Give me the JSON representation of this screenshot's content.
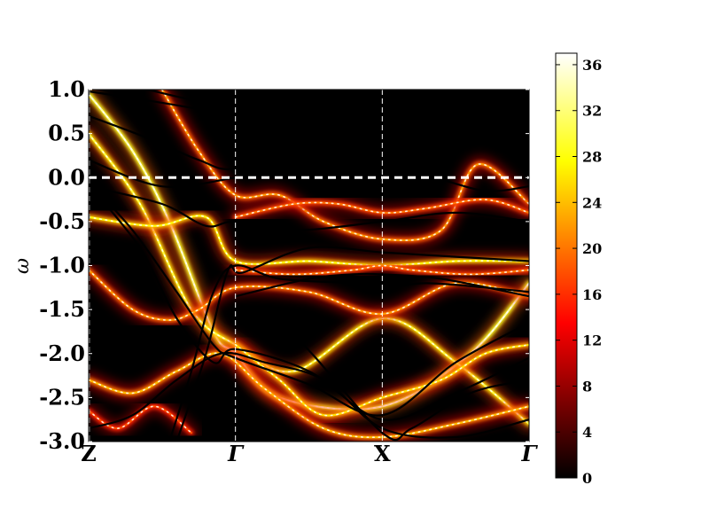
{
  "chart_data": {
    "type": "heatmap",
    "title": "",
    "xlabel": "",
    "ylabel": "ω",
    "ylim": [
      -3.0,
      1.0
    ],
    "x_ticks": [
      {
        "label": "Z",
        "pos": 0.0,
        "italic": false
      },
      {
        "label": "Γ",
        "pos": 1.0,
        "italic": true
      },
      {
        "label": "X",
        "pos": 2.0,
        "italic": false
      },
      {
        "label": "Γ",
        "pos": 3.0,
        "italic": true
      }
    ],
    "y_ticks": [
      "-3.0",
      "-2.5",
      "-2.0",
      "-1.5",
      "-1.0",
      "-0.5",
      "0.0",
      "0.5",
      "1.0"
    ],
    "y_tick_values": [
      -3.0,
      -2.5,
      -2.0,
      -1.5,
      -1.0,
      -0.5,
      0.0,
      0.5,
      1.0
    ],
    "fermi_level": 0.0,
    "colorbar": {
      "range": [
        0,
        37
      ],
      "ticks": [
        0,
        4,
        8,
        12,
        16,
        20,
        24,
        28,
        32,
        36
      ],
      "tick_labels": [
        "0",
        "4",
        "8",
        "12",
        "16",
        "20",
        "24",
        "28",
        "32",
        "36"
      ],
      "colormap": "hot"
    },
    "spectral_bands": [
      {
        "points": [
          [
            0.0,
            0.95
          ],
          [
            0.3,
            0.3
          ],
          [
            0.55,
            -0.5
          ],
          [
            0.85,
            -1.75
          ],
          [
            1.0,
            -2.0
          ],
          [
            1.3,
            -2.5
          ],
          [
            2.0,
            -2.6
          ],
          [
            2.6,
            -2.0
          ],
          [
            3.0,
            -1.2
          ]
        ],
        "intensity": 34
      },
      {
        "points": [
          [
            0.0,
            0.5
          ],
          [
            0.35,
            -0.3
          ],
          [
            0.7,
            -1.5
          ],
          [
            1.0,
            -1.9
          ],
          [
            1.4,
            -2.2
          ],
          [
            2.0,
            -1.6
          ],
          [
            2.5,
            -2.1
          ],
          [
            3.0,
            -2.8
          ]
        ],
        "intensity": 30
      },
      {
        "points": [
          [
            0.5,
            1.0
          ],
          [
            0.75,
            0.3
          ],
          [
            1.0,
            -0.2
          ],
          [
            1.3,
            -0.2
          ],
          [
            1.6,
            -0.5
          ],
          [
            2.0,
            -0.7
          ],
          [
            2.4,
            -0.6
          ],
          [
            2.65,
            0.15
          ],
          [
            3.0,
            -0.3
          ]
        ],
        "intensity": 22
      },
      {
        "points": [
          [
            0.0,
            -0.45
          ],
          [
            0.45,
            -0.55
          ],
          [
            0.8,
            -0.45
          ],
          [
            1.0,
            -0.95
          ],
          [
            1.5,
            -0.95
          ],
          [
            2.0,
            -1.0
          ],
          [
            2.5,
            -0.95
          ],
          [
            3.0,
            -0.95
          ]
        ],
        "intensity": 28
      },
      {
        "points": [
          [
            1.0,
            -0.45
          ],
          [
            1.4,
            -0.3
          ],
          [
            1.7,
            -0.3
          ],
          [
            2.0,
            -0.4
          ],
          [
            2.3,
            -0.35
          ],
          [
            2.7,
            -0.25
          ],
          [
            3.0,
            -0.4
          ]
        ],
        "intensity": 20
      },
      {
        "points": [
          [
            0.0,
            -2.3
          ],
          [
            0.3,
            -2.45
          ],
          [
            0.6,
            -2.2
          ],
          [
            0.9,
            -2.0
          ],
          [
            1.2,
            -2.4
          ],
          [
            1.6,
            -2.85
          ],
          [
            2.0,
            -2.95
          ],
          [
            2.5,
            -2.8
          ],
          [
            3.0,
            -2.6
          ]
        ],
        "intensity": 24
      },
      {
        "points": [
          [
            1.0,
            -1.9
          ],
          [
            1.3,
            -2.3
          ],
          [
            1.6,
            -2.7
          ],
          [
            2.0,
            -2.5
          ],
          [
            2.4,
            -2.3
          ],
          [
            2.7,
            -2.0
          ],
          [
            3.0,
            -1.9
          ]
        ],
        "intensity": 26
      },
      {
        "points": [
          [
            0.0,
            -1.05
          ],
          [
            0.3,
            -1.5
          ],
          [
            0.55,
            -1.62
          ],
          [
            0.75,
            -1.5
          ],
          [
            1.0,
            -1.25
          ],
          [
            1.5,
            -1.3
          ],
          [
            2.0,
            -1.55
          ],
          [
            2.5,
            -1.2
          ],
          [
            3.0,
            -1.35
          ]
        ],
        "intensity": 22
      },
      {
        "points": [
          [
            0.0,
            -2.65
          ],
          [
            0.2,
            -2.85
          ],
          [
            0.45,
            -2.6
          ],
          [
            0.7,
            -2.9
          ]
        ],
        "intensity": 18
      },
      {
        "points": [
          [
            1.0,
            -1.05
          ],
          [
            1.4,
            -1.1
          ],
          [
            1.8,
            -1.05
          ],
          [
            2.0,
            -1.0
          ],
          [
            2.2,
            -1.05
          ],
          [
            2.6,
            -1.1
          ],
          [
            3.0,
            -1.05
          ]
        ],
        "intensity": 20
      }
    ],
    "black_lines": [
      {
        "points": [
          [
            0.0,
            0.98
          ],
          [
            0.5,
            0.85
          ],
          [
            1.0,
            0.72
          ],
          [
            1.5,
            0.7
          ],
          [
            2.0,
            0.6
          ],
          [
            2.5,
            0.65
          ],
          [
            3.0,
            0.7
          ]
        ]
      },
      {
        "points": [
          [
            0.0,
            0.7
          ],
          [
            0.4,
            0.45
          ],
          [
            0.75,
            0.2
          ],
          [
            1.0,
            0.1
          ],
          [
            1.5,
            0.35
          ],
          [
            2.0,
            0.28
          ],
          [
            2.5,
            0.4
          ],
          [
            3.0,
            0.45
          ]
        ]
      },
      {
        "points": [
          [
            0.4,
            1.0
          ],
          [
            0.8,
            0.85
          ],
          [
            1.2,
            0.75
          ],
          [
            1.8,
            0.5
          ],
          [
            2.2,
            0.55
          ],
          [
            3.0,
            0.75
          ]
        ]
      },
      {
        "points": [
          [
            0.0,
            0.2
          ],
          [
            0.5,
            -0.1
          ],
          [
            1.0,
            0.0
          ],
          [
            1.3,
            0.08
          ],
          [
            1.6,
            0.05
          ],
          [
            2.0,
            0.05
          ],
          [
            2.3,
            0.02
          ],
          [
            2.7,
            -0.15
          ],
          [
            3.0,
            -0.1
          ]
        ]
      },
      {
        "points": [
          [
            0.0,
            -0.1
          ],
          [
            0.5,
            -0.3
          ],
          [
            0.8,
            -0.55
          ],
          [
            1.0,
            -0.5
          ],
          [
            1.4,
            -0.6
          ],
          [
            2.0,
            -0.5
          ],
          [
            2.5,
            -0.4
          ],
          [
            3.0,
            -0.5
          ]
        ]
      },
      {
        "points": [
          [
            0.0,
            -0.05
          ],
          [
            0.3,
            -0.6
          ],
          [
            0.6,
            -1.3
          ],
          [
            0.85,
            -1.9
          ],
          [
            1.0,
            -2.05
          ],
          [
            1.5,
            -2.35
          ],
          [
            2.0,
            -2.7
          ],
          [
            2.5,
            -2.1
          ],
          [
            3.0,
            -1.65
          ]
        ]
      },
      {
        "points": [
          [
            0.0,
            -0.08
          ],
          [
            0.35,
            -0.8
          ],
          [
            0.6,
            -1.6
          ],
          [
            0.85,
            -2.1
          ],
          [
            1.0,
            -1.95
          ],
          [
            1.5,
            -2.2
          ],
          [
            2.0,
            -2.75
          ],
          [
            2.5,
            -2.45
          ],
          [
            3.0,
            -2.05
          ]
        ]
      },
      {
        "points": [
          [
            0.55,
            -3.0
          ],
          [
            0.7,
            -2.2
          ],
          [
            0.85,
            -1.3
          ],
          [
            1.0,
            -1.0
          ],
          [
            1.3,
            -1.15
          ],
          [
            1.8,
            -1.2
          ],
          [
            2.0,
            -1.25
          ],
          [
            2.3,
            -1.2
          ],
          [
            2.7,
            -1.25
          ],
          [
            3.0,
            -1.3
          ]
        ]
      },
      {
        "points": [
          [
            0.6,
            -3.0
          ],
          [
            0.8,
            -2.0
          ],
          [
            0.95,
            -1.05
          ],
          [
            1.05,
            -1.08
          ],
          [
            1.5,
            -0.8
          ],
          [
            2.0,
            -0.85
          ],
          [
            2.5,
            -0.9
          ],
          [
            3.0,
            -0.95
          ]
        ]
      },
      {
        "points": [
          [
            1.0,
            -1.35
          ],
          [
            1.5,
            -1.15
          ],
          [
            1.8,
            -1.1
          ],
          [
            2.0,
            -1.1
          ],
          [
            2.4,
            -1.15
          ],
          [
            3.0,
            -1.35
          ]
        ]
      },
      {
        "points": [
          [
            1.0,
            -1.5
          ],
          [
            1.4,
            -1.8
          ],
          [
            2.0,
            -2.9
          ],
          [
            2.2,
            -2.85
          ],
          [
            2.6,
            -2.45
          ],
          [
            3.0,
            -2.3
          ]
        ]
      },
      {
        "points": [
          [
            0.0,
            -2.85
          ],
          [
            0.3,
            -2.7
          ],
          [
            0.6,
            -2.3
          ],
          [
            0.9,
            -2.0
          ],
          [
            1.2,
            -2.1
          ],
          [
            1.6,
            -2.3
          ],
          [
            2.0,
            -2.85
          ],
          [
            2.5,
            -2.95
          ],
          [
            3.0,
            -2.75
          ]
        ]
      }
    ]
  }
}
